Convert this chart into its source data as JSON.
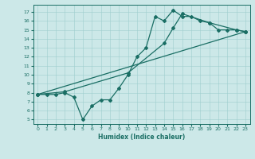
{
  "title": "",
  "xlabel": "Humidex (Indice chaleur)",
  "bg_color": "#cce8e8",
  "line_color": "#1a6e64",
  "xlim": [
    -0.5,
    23.5
  ],
  "ylim": [
    4.5,
    17.8
  ],
  "xticks": [
    0,
    1,
    2,
    3,
    4,
    5,
    6,
    7,
    8,
    9,
    10,
    11,
    12,
    13,
    14,
    15,
    16,
    17,
    18,
    19,
    20,
    21,
    22,
    23
  ],
  "yticks": [
    5,
    6,
    7,
    8,
    9,
    10,
    11,
    12,
    13,
    14,
    15,
    16,
    17
  ],
  "line1_x": [
    0,
    1,
    2,
    3,
    4,
    5,
    6,
    7,
    8,
    9,
    10,
    11,
    12,
    13,
    14,
    15,
    16,
    17,
    18,
    19,
    20,
    21,
    22,
    23
  ],
  "line1_y": [
    7.8,
    7.8,
    7.8,
    8.0,
    7.5,
    5.0,
    6.5,
    7.2,
    7.2,
    8.5,
    10.0,
    12.0,
    13.0,
    16.5,
    16.0,
    17.2,
    16.5,
    16.5,
    16.0,
    15.8,
    15.0,
    15.0,
    15.0,
    14.8
  ],
  "line2_x": [
    0,
    3,
    10,
    14,
    15,
    16,
    19,
    22,
    23
  ],
  "line2_y": [
    7.8,
    8.1,
    10.2,
    13.5,
    15.2,
    16.8,
    15.8,
    15.0,
    14.8
  ],
  "line3_x": [
    0,
    23
  ],
  "line3_y": [
    7.8,
    14.8
  ]
}
